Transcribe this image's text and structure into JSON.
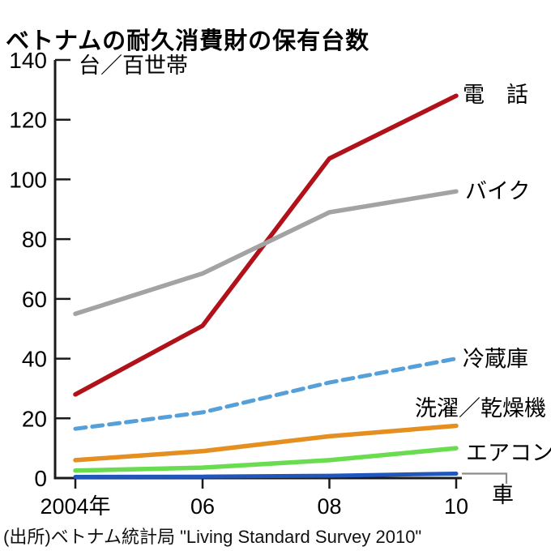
{
  "title": "ベトナムの耐久消費財の保有台数",
  "y_axis": {
    "unit_label": "台／百世帯"
  },
  "source": "(出所)ベトナム統計局 \"Living Standard Survey 2010\"",
  "colors": {
    "axis": "#1a1a1a",
    "leader_line": "#8c8c8c",
    "background": "#ffffff"
  },
  "chart_data": {
    "type": "line",
    "title": "ベトナムの耐久消費財の保有台数",
    "ylabel": "台／百世帯",
    "xlabel": "",
    "ylim": [
      0,
      140
    ],
    "y_ticks": [
      0,
      20,
      40,
      60,
      80,
      100,
      120,
      140
    ],
    "x_tick_labels": [
      "2004年",
      "06",
      "08",
      "10"
    ],
    "x_values": [
      2004,
      2006,
      2008,
      2010
    ],
    "grid": false,
    "legend_position": "labels-at-line-ends",
    "series": [
      {
        "name": "電　話",
        "key": "phone",
        "color": "#b1121a",
        "style": "solid",
        "width": 5.5,
        "values": [
          28,
          51,
          107,
          128
        ]
      },
      {
        "name": "バイク",
        "key": "motorbike",
        "color": "#a3a3a3",
        "style": "solid",
        "width": 5.5,
        "values": [
          55,
          68.5,
          89,
          96
        ]
      },
      {
        "name": "冷蔵庫",
        "key": "refrigerator",
        "color": "#55a0d9",
        "style": "dashed",
        "width": 5,
        "values": [
          16.5,
          22,
          32,
          40
        ]
      },
      {
        "name": "洗濯／乾燥機",
        "key": "washer-dryer",
        "color": "#e48f20",
        "style": "solid",
        "width": 5.5,
        "values": [
          6,
          9,
          14,
          17.5
        ]
      },
      {
        "name": "エアコン",
        "key": "air-conditioner",
        "color": "#69dc50",
        "style": "solid",
        "width": 5.5,
        "values": [
          2.5,
          3.5,
          6,
          10
        ]
      },
      {
        "name": "車",
        "key": "car",
        "color": "#2156bd",
        "style": "solid",
        "width": 5,
        "values": [
          0.4,
          0.5,
          0.8,
          1.5
        ]
      }
    ]
  }
}
